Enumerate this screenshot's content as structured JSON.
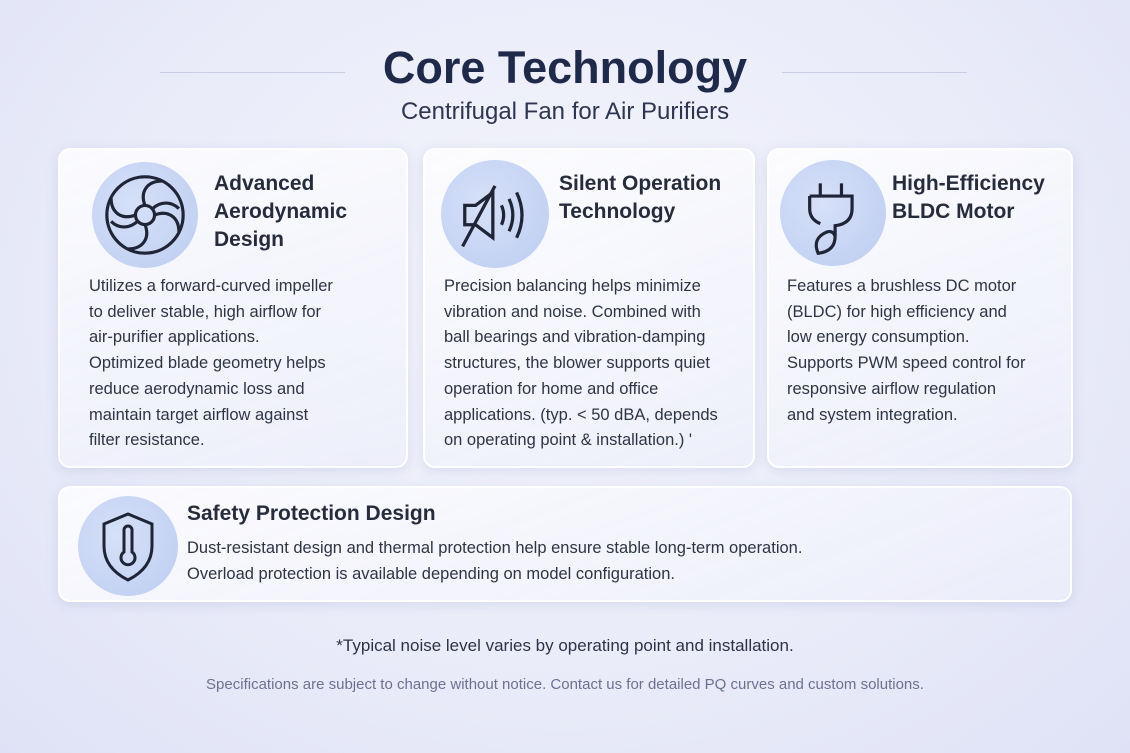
{
  "header": {
    "title": "Core Technology",
    "subtitle": "Centrifugal Fan for Air Purifiers"
  },
  "cards": [
    {
      "icon": "fan-icon",
      "title_lines": [
        "Advanced",
        "Aerodynamic",
        "Design"
      ],
      "body_lines": [
        "Utilizes a forward-curved impeller",
        "to deliver stable, high airflow for",
        "air-purifier applications.",
        "Optimized blade geometry helps",
        "reduce aerodynamic loss and",
        "maintain target airflow against",
        "filter resistance."
      ]
    },
    {
      "icon": "speaker-muted-icon",
      "title_lines": [
        "Silent Operation",
        "Technology"
      ],
      "body_lines": [
        "Precision balancing helps minimize",
        "vibration and noise. Combined with",
        "ball bearings and vibration-damping",
        "structures, the blower supports quiet",
        "operation for home and office",
        "applications. (typ. < 50 dBA, depends",
        "on operating point & installation.) '"
      ]
    },
    {
      "icon": "plug-leaf-icon",
      "title_lines": [
        "High-Efficiency",
        "BLDC Motor"
      ],
      "body_lines": [
        "Features a brushless DC motor",
        "(BLDC) for high efficiency and",
        "low energy consumption.",
        "Supports PWM speed control for",
        "responsive airflow regulation",
        "and system integration."
      ]
    },
    {
      "icon": "shield-thermometer-icon",
      "title_lines": [
        "Safety Protection Design"
      ],
      "body_lines": [
        "Dust-resistant design and thermal protection help ensure stable long-term operation.",
        "Overload protection is available depending on model configuration."
      ]
    }
  ],
  "footer": {
    "note": "*Typical noise level varies by operating point and installation.",
    "disclaimer": "Specifications are subject to change without notice. Contact us for detailed PQ curves and custom solutions."
  },
  "colors": {
    "title": "#1f2a4b",
    "icon_bg": "#c8d6f4",
    "icon_stroke": "#1f2436"
  }
}
